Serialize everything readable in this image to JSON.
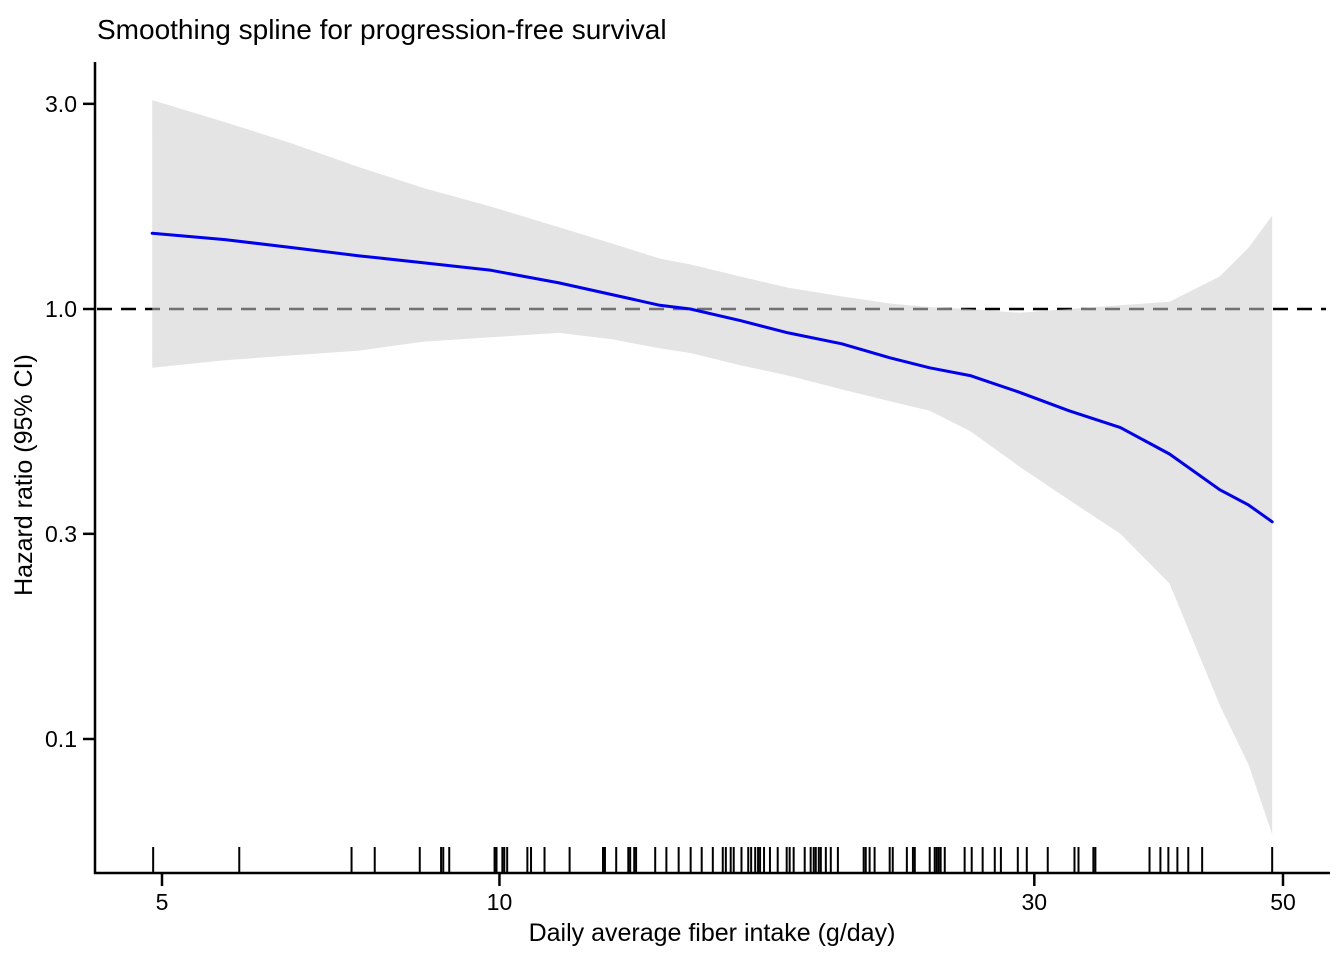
{
  "chart_data": {
    "type": "line",
    "title": "Smoothing spline for progression-free survival",
    "xlabel": "Daily average fiber intake (g/day)",
    "ylabel": "Hazard ratio (95% CI)",
    "x_scale": "log",
    "y_scale": "log",
    "x_ticks": [
      5,
      10,
      30,
      50
    ],
    "x_tick_labels": [
      "5",
      "10",
      "30",
      "50"
    ],
    "y_ticks": [
      3.0,
      1.0,
      0.3,
      0.1
    ],
    "y_tick_labels": [
      "3.0",
      "1.0",
      "0.3",
      "0.1"
    ],
    "x_range": [
      4.4,
      55
    ],
    "y_range": [
      0.05,
      3.75
    ],
    "grid": "off",
    "legend": "none",
    "reference_line": {
      "y": 1.0,
      "style": "dashed",
      "color": "#000000"
    },
    "x": [
      4.9,
      5.69,
      6.52,
      7.48,
      8.57,
      9.83,
      11.3,
      12.6,
      13.9,
      14.8,
      16.4,
      18.1,
      20.2,
      22.3,
      24.2,
      26.3,
      29.1,
      32.2,
      35.8,
      39.6,
      43.9,
      46.6,
      48.9
    ],
    "series": [
      {
        "name": "spline_hazard_ratio",
        "values": [
          1.5,
          1.45,
          1.39,
          1.33,
          1.28,
          1.23,
          1.15,
          1.08,
          1.02,
          1.0,
          0.94,
          0.88,
          0.83,
          0.77,
          0.73,
          0.7,
          0.64,
          0.58,
          0.53,
          0.46,
          0.38,
          0.35,
          0.32
        ]
      },
      {
        "name": "ci_upper_95",
        "values": [
          3.06,
          2.72,
          2.43,
          2.14,
          1.91,
          1.73,
          1.55,
          1.42,
          1.31,
          1.27,
          1.19,
          1.12,
          1.07,
          1.03,
          1.01,
          1.0,
          0.98,
          1.0,
          1.02,
          1.04,
          1.19,
          1.39,
          1.65
        ]
      },
      {
        "name": "ci_lower_95",
        "values": [
          0.73,
          0.76,
          0.78,
          0.8,
          0.84,
          0.86,
          0.88,
          0.85,
          0.81,
          0.79,
          0.74,
          0.7,
          0.65,
          0.61,
          0.58,
          0.52,
          0.43,
          0.36,
          0.3,
          0.23,
          0.12,
          0.087,
          0.06
        ]
      }
    ],
    "rug_x": [
      4.91,
      5.86,
      7.38,
      7.74,
      8.49,
      8.87,
      8.91,
      9.02,
      9.9,
      9.94,
      10.06,
      10.1,
      10.16,
      10.59,
      10.67,
      10.97,
      11.55,
      12.37,
      12.42,
      12.71,
      13.03,
      13.08,
      13.19,
      13.24,
      13.77,
      14.09,
      14.45,
      14.81,
      15.15,
      15.5,
      15.82,
      15.92,
      16.08,
      16.18,
      16.44,
      16.67,
      16.77,
      16.91,
      17.01,
      17.08,
      17.22,
      17.43,
      17.71,
      18.04,
      18.15,
      18.3,
      18.72,
      18.95,
      19.07,
      19.15,
      19.27,
      19.35,
      19.55,
      19.75,
      20.04,
      21.13,
      21.22,
      21.39,
      21.61,
      22.29,
      22.43,
      23.09,
      23.38,
      23.47,
      24.2,
      24.45,
      24.55,
      24.65,
      24.75,
      24.96,
      26.0,
      26.38,
      26.98,
      27.66,
      28.01,
      29.0,
      29.54,
      30.84,
      32.58,
      32.85,
      33.87,
      34.01,
      38.01,
      38.87,
      39.51,
      40.25,
      41.16,
      42.35,
      48.9
    ],
    "colors": {
      "line": "#0000EE",
      "band": "#CDCDCD",
      "band_opacity": 0.55,
      "reference": "#000000",
      "axis": "#000000",
      "background": "#FFFFFF"
    }
  }
}
